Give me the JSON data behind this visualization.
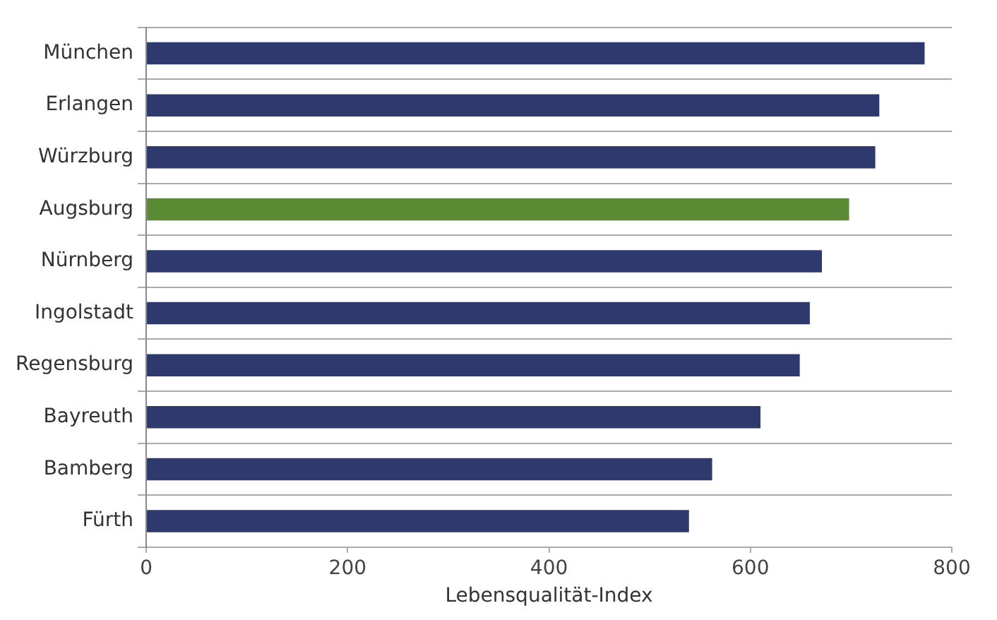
{
  "chart_data": {
    "type": "bar",
    "orientation": "horizontal",
    "xlabel": "Lebensqualität-Index",
    "categories": [
      "München",
      "Erlangen",
      "Würzburg",
      "Augsburg",
      "Nürnberg",
      "Ingolstadt",
      "Regensburg",
      "Bayreuth",
      "Bamberg",
      "Fürth"
    ],
    "values": [
      773,
      728,
      724,
      698,
      671,
      659,
      649,
      610,
      562,
      539
    ],
    "colors": [
      "#2e3a6e",
      "#2e3a6e",
      "#2e3a6e",
      "#5a8a34",
      "#2e3a6e",
      "#2e3a6e",
      "#2e3a6e",
      "#2e3a6e",
      "#2e3a6e",
      "#2e3a6e"
    ],
    "xlim": [
      0,
      800
    ],
    "xticks": [
      0,
      200,
      400,
      600,
      800
    ],
    "grid": "y",
    "legend": false
  }
}
